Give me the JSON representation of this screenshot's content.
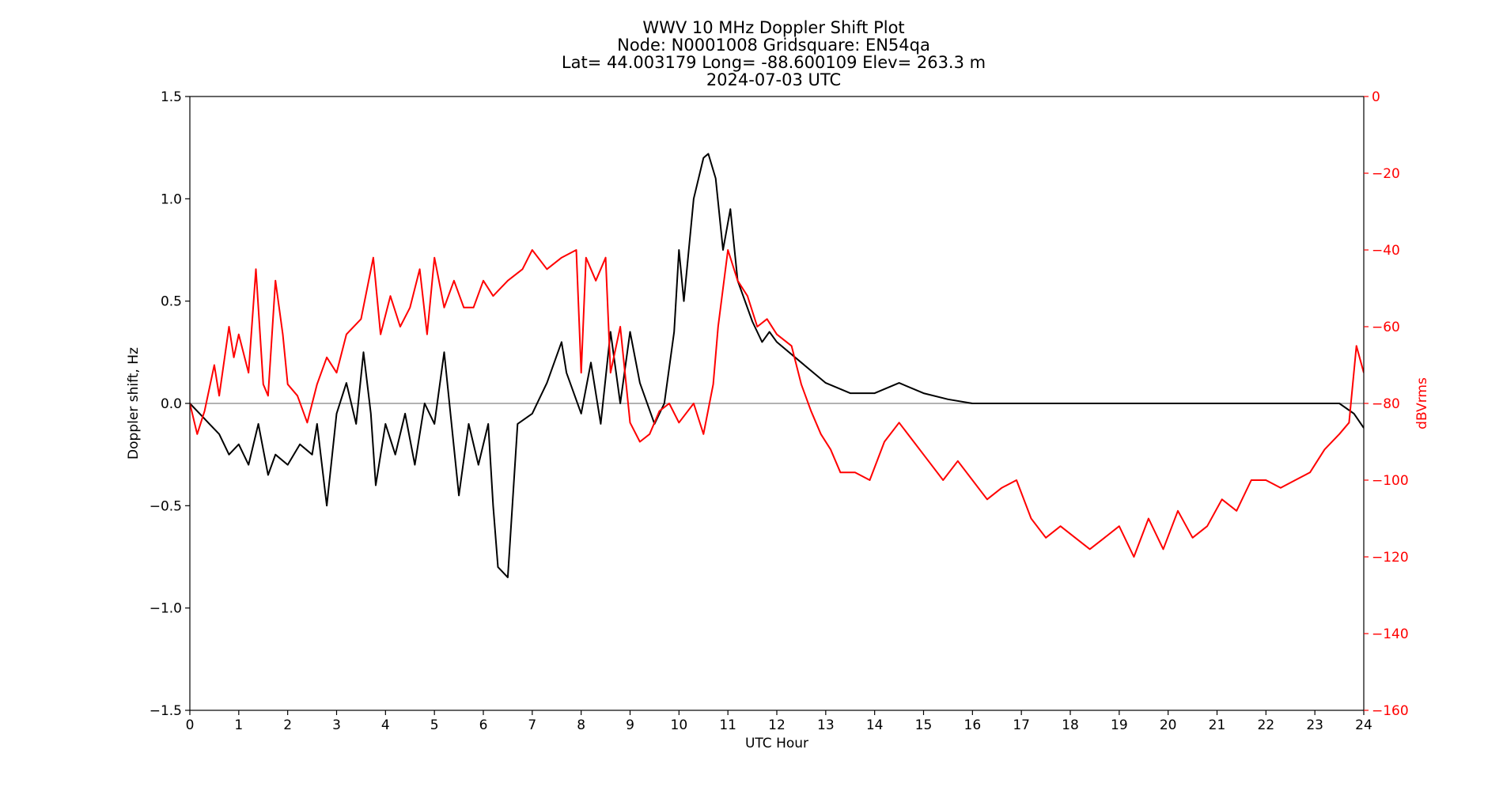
{
  "chart_data": {
    "type": "line",
    "title_lines": [
      "WWV 10 MHz Doppler Shift Plot",
      "Node:  N0001008     Gridsquare:  EN54qa",
      "Lat= 44.003179    Long= -88.600109    Elev= 263.3 m",
      "2024-07-03  UTC"
    ],
    "xlabel": "UTC Hour",
    "ylabel": "Doppler shift, Hz",
    "y2label": "dBVrms",
    "xlim": [
      0,
      24
    ],
    "ylim": [
      -1.5,
      1.5
    ],
    "y2lim": [
      -160,
      0
    ],
    "xticks": [
      0,
      1,
      2,
      3,
      4,
      5,
      6,
      7,
      8,
      9,
      10,
      11,
      12,
      13,
      14,
      15,
      16,
      17,
      18,
      19,
      20,
      21,
      22,
      23,
      24
    ],
    "yticks": [
      -1.5,
      -1.0,
      -0.5,
      0.0,
      0.5,
      1.0,
      1.5
    ],
    "y2ticks": [
      0,
      -20,
      -40,
      -60,
      -80,
      -100,
      -120,
      -140,
      -160
    ],
    "ytick_labels": [
      "−1.5",
      "−1.0",
      "−0.5",
      "0.0",
      "0.5",
      "1.0",
      "1.5"
    ],
    "y2tick_labels": [
      "0",
      "−20",
      "−40",
      "−60",
      "−80",
      "−100",
      "−120",
      "−140",
      "−160"
    ],
    "grid": false,
    "zero_line": 0.0,
    "colors": {
      "doppler": "#000000",
      "power": "#ff0000",
      "zero_line": "#999999",
      "right_axis": "#ff0000"
    },
    "series": [
      {
        "axis": "left",
        "x": [
          0,
          0.2,
          0.4,
          0.6,
          0.8,
          1.0,
          1.2,
          1.4,
          1.6,
          1.75,
          2.0,
          2.25,
          2.5,
          2.6,
          2.8,
          3.0,
          3.2,
          3.4,
          3.55,
          3.7,
          3.8,
          4.0,
          4.2,
          4.4,
          4.6,
          4.8,
          5.0,
          5.2,
          5.5,
          5.7,
          5.9,
          6.1,
          6.2,
          6.3,
          6.5,
          6.7,
          7.0,
          7.3,
          7.6,
          7.7,
          8.0,
          8.2,
          8.4,
          8.6,
          8.8,
          9.0,
          9.2,
          9.5,
          9.7,
          9.9,
          10.0,
          10.1,
          10.3,
          10.5,
          10.6,
          10.75,
          10.9,
          11.05,
          11.2,
          11.5,
          11.7,
          11.85,
          12.0,
          12.5,
          13.0,
          13.5,
          14.0,
          14.5,
          15.0,
          15.5,
          16.0,
          16.5,
          17.0,
          17.5,
          18.0,
          18.5,
          19.0,
          19.5,
          20.0,
          20.5,
          21.0,
          21.5,
          22.0,
          22.5,
          23.0,
          23.5,
          23.8,
          24.0
        ],
        "y": [
          0,
          -0.05,
          -0.1,
          -0.15,
          -0.25,
          -0.2,
          -0.3,
          -0.1,
          -0.35,
          -0.25,
          -0.3,
          -0.2,
          -0.25,
          -0.1,
          -0.5,
          -0.05,
          0.1,
          -0.1,
          0.25,
          -0.05,
          -0.4,
          -0.1,
          -0.25,
          -0.05,
          -0.3,
          0.0,
          -0.1,
          0.25,
          -0.45,
          -0.1,
          -0.3,
          -0.1,
          -0.5,
          -0.8,
          -0.85,
          -0.1,
          -0.05,
          0.1,
          0.3,
          0.15,
          -0.05,
          0.2,
          -0.1,
          0.35,
          0.0,
          0.35,
          0.1,
          -0.1,
          0.0,
          0.35,
          0.75,
          0.5,
          1.0,
          1.2,
          1.22,
          1.1,
          0.75,
          0.95,
          0.6,
          0.4,
          0.3,
          0.35,
          0.3,
          0.2,
          0.1,
          0.05,
          0.05,
          0.1,
          0.05,
          0.02,
          0.0,
          0.0,
          0.0,
          0.0,
          0.0,
          0.0,
          0.0,
          0.0,
          0.0,
          0.0,
          0.0,
          0.0,
          0.0,
          0.0,
          0.0,
          0.0,
          -0.05,
          -0.12
        ]
      },
      {
        "axis": "right",
        "x": [
          0,
          0.15,
          0.3,
          0.5,
          0.6,
          0.8,
          0.9,
          1.0,
          1.2,
          1.35,
          1.5,
          1.6,
          1.75,
          1.9,
          2.0,
          2.2,
          2.4,
          2.6,
          2.8,
          3.0,
          3.2,
          3.5,
          3.75,
          3.9,
          4.1,
          4.3,
          4.5,
          4.7,
          4.85,
          5.0,
          5.2,
          5.4,
          5.6,
          5.8,
          6.0,
          6.2,
          6.5,
          6.8,
          7.0,
          7.3,
          7.6,
          7.9,
          8.0,
          8.1,
          8.3,
          8.5,
          8.6,
          8.8,
          9.0,
          9.2,
          9.4,
          9.6,
          9.8,
          10.0,
          10.3,
          10.5,
          10.7,
          10.8,
          11.0,
          11.2,
          11.4,
          11.6,
          11.8,
          12.0,
          12.3,
          12.5,
          12.7,
          12.9,
          13.1,
          13.3,
          13.6,
          13.9,
          14.2,
          14.5,
          14.8,
          15.1,
          15.4,
          15.7,
          16.0,
          16.3,
          16.6,
          16.9,
          17.2,
          17.5,
          17.8,
          18.1,
          18.4,
          18.7,
          19.0,
          19.3,
          19.6,
          19.9,
          20.2,
          20.5,
          20.8,
          21.1,
          21.4,
          21.7,
          22.0,
          22.3,
          22.6,
          22.9,
          23.2,
          23.5,
          23.7,
          23.85,
          24.0
        ],
        "y": [
          -80,
          -88,
          -82,
          -70,
          -78,
          -60,
          -68,
          -62,
          -72,
          -45,
          -75,
          -78,
          -48,
          -62,
          -75,
          -78,
          -85,
          -75,
          -68,
          -72,
          -62,
          -58,
          -42,
          -62,
          -52,
          -60,
          -55,
          -45,
          -62,
          -42,
          -55,
          -48,
          -55,
          -55,
          -48,
          -52,
          -48,
          -45,
          -40,
          -45,
          -42,
          -40,
          -72,
          -42,
          -48,
          -42,
          -72,
          -60,
          -85,
          -90,
          -88,
          -82,
          -80,
          -85,
          -80,
          -88,
          -75,
          -60,
          -40,
          -48,
          -52,
          -60,
          -58,
          -62,
          -65,
          -75,
          -82,
          -88,
          -92,
          -98,
          -98,
          -100,
          -90,
          -85,
          -90,
          -95,
          -100,
          -95,
          -100,
          -105,
          -102,
          -100,
          -110,
          -115,
          -112,
          -115,
          -118,
          -115,
          -112,
          -120,
          -110,
          -118,
          -108,
          -115,
          -112,
          -105,
          -108,
          -100,
          -100,
          -102,
          -100,
          -98,
          -92,
          -88,
          -85,
          -65,
          -72
        ]
      }
    ]
  }
}
